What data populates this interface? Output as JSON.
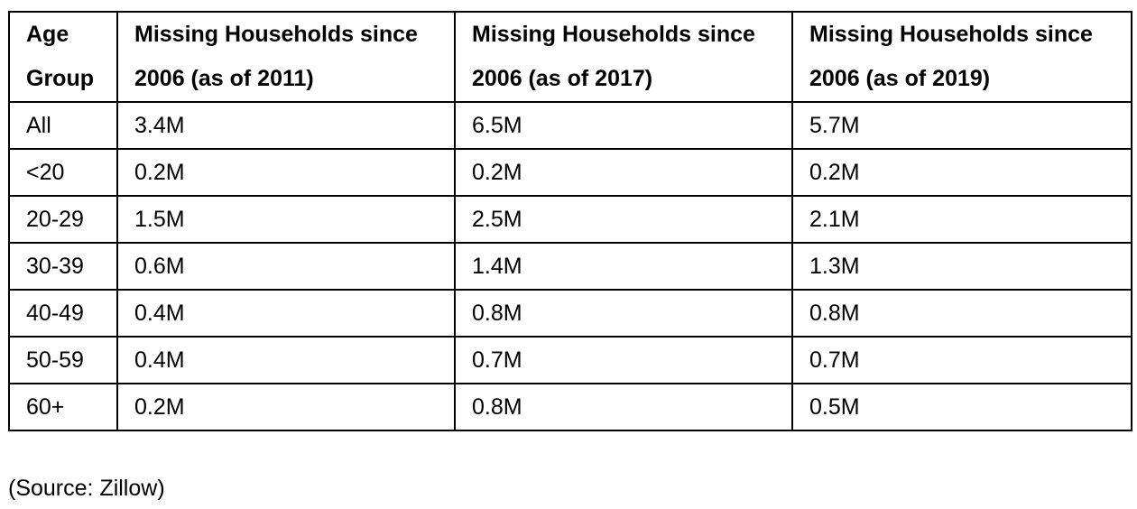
{
  "table": {
    "headers": [
      "Age Group",
      "Missing Households since 2006 (as of 2011)",
      "Missing Households since 2006 (as of 2017)",
      "Missing Households since 2006 (as of 2019)"
    ],
    "rows": [
      [
        "All",
        "3.4M",
        "6.5M",
        "5.7M"
      ],
      [
        "<20",
        "0.2M",
        "0.2M",
        "0.2M"
      ],
      [
        "20-29",
        "1.5M",
        "2.5M",
        "2.1M"
      ],
      [
        "30-39",
        "0.6M",
        "1.4M",
        "1.3M"
      ],
      [
        "40-49",
        "0.4M",
        "0.8M",
        "0.8M"
      ],
      [
        "50-59",
        "0.4M",
        "0.7M",
        "0.7M"
      ],
      [
        "60+",
        "0.2M",
        "0.8M",
        "0.5M"
      ]
    ]
  },
  "source": "(Source: Zillow)"
}
